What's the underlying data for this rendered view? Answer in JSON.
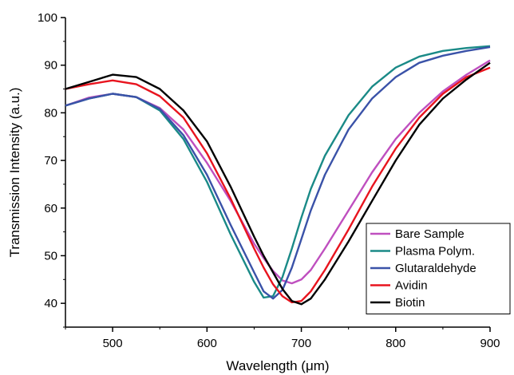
{
  "chart_data": {
    "type": "line",
    "title": "",
    "xlabel": "Wavelength (μm)",
    "ylabel": "Transmission Intensity (a.u.)",
    "xlim": [
      450,
      900
    ],
    "ylim": [
      35,
      100
    ],
    "xticks": [
      "500",
      "600",
      "700",
      "800",
      "900"
    ],
    "yticks": [
      "40",
      "50",
      "60",
      "70",
      "80",
      "90",
      "100"
    ],
    "xtick_values": [
      500,
      600,
      700,
      800,
      900
    ],
    "ytick_values": [
      40,
      50,
      60,
      70,
      80,
      90,
      100
    ],
    "grid": false,
    "legend_position": "bottom-right",
    "x": [
      450,
      475,
      500,
      525,
      550,
      575,
      600,
      625,
      650,
      660,
      670,
      680,
      690,
      700,
      710,
      725,
      750,
      775,
      800,
      825,
      850,
      875,
      900
    ],
    "series": [
      {
        "name": "Bare Sample",
        "color": "#bf4fbf",
        "values": [
          81.5,
          83.2,
          84.0,
          83.3,
          81.0,
          76.5,
          69.5,
          61.5,
          52.5,
          49.5,
          46.8,
          44.8,
          44.2,
          45.0,
          47.0,
          51.5,
          59.5,
          67.5,
          74.5,
          80.0,
          84.5,
          88.0,
          91.0
        ]
      },
      {
        "name": "Plasma Polym.",
        "color": "#1a8a87",
        "values": [
          81.5,
          83.0,
          84.0,
          83.3,
          80.5,
          74.5,
          65.5,
          54.5,
          44.5,
          41.2,
          41.5,
          45.5,
          51.5,
          58.0,
          64.0,
          71.0,
          79.5,
          85.5,
          89.5,
          91.8,
          93.0,
          93.6,
          94.0
        ]
      },
      {
        "name": "Glutaraldehyde",
        "color": "#3a52a8",
        "values": [
          81.5,
          83.0,
          84.0,
          83.3,
          80.8,
          75.3,
          67.0,
          56.5,
          46.5,
          42.5,
          41.0,
          42.8,
          47.5,
          53.5,
          59.5,
          67.0,
          76.5,
          83.0,
          87.5,
          90.5,
          92.0,
          93.0,
          93.8
        ]
      },
      {
        "name": "Avidin",
        "color": "#e8141e",
        "values": [
          85.0,
          86.0,
          86.8,
          86.0,
          83.5,
          79.0,
          71.5,
          62.0,
          51.5,
          47.5,
          44.0,
          41.5,
          40.2,
          40.5,
          42.5,
          47.0,
          55.5,
          64.5,
          72.5,
          79.0,
          84.0,
          87.5,
          89.5
        ]
      },
      {
        "name": "Biotin",
        "color": "#000000",
        "values": [
          85.0,
          86.5,
          88.0,
          87.5,
          85.0,
          80.5,
          74.0,
          64.5,
          54.0,
          50.0,
          46.5,
          43.0,
          40.5,
          39.8,
          41.0,
          45.0,
          53.0,
          61.5,
          70.0,
          77.5,
          83.0,
          87.0,
          90.5
        ]
      }
    ]
  }
}
